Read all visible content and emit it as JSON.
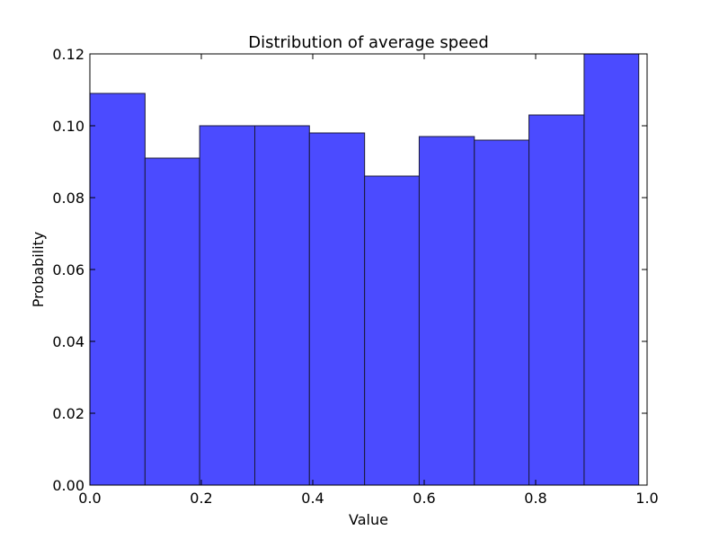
{
  "colors": {
    "bar_fill": "#4b4bff",
    "bar_edge": "#1a1a3a",
    "axes": "#000000",
    "background": "#ffffff"
  },
  "chart_data": {
    "type": "bar",
    "title": "Distribution of average speed",
    "xlabel": "Value",
    "ylabel": "Probability",
    "xlim": [
      0.0,
      1.0
    ],
    "ylim": [
      0.0,
      0.12
    ],
    "grid": false,
    "bins": [
      {
        "x0": 0.0,
        "x1": 0.099,
        "value": 0.109
      },
      {
        "x0": 0.099,
        "x1": 0.197,
        "value": 0.091
      },
      {
        "x0": 0.197,
        "x1": 0.296,
        "value": 0.1
      },
      {
        "x0": 0.296,
        "x1": 0.394,
        "value": 0.1
      },
      {
        "x0": 0.394,
        "x1": 0.493,
        "value": 0.098
      },
      {
        "x0": 0.493,
        "x1": 0.591,
        "value": 0.086
      },
      {
        "x0": 0.591,
        "x1": 0.69,
        "value": 0.097
      },
      {
        "x0": 0.69,
        "x1": 0.788,
        "value": 0.096
      },
      {
        "x0": 0.788,
        "x1": 0.887,
        "value": 0.103
      },
      {
        "x0": 0.887,
        "x1": 0.985,
        "value": 0.12
      }
    ],
    "xticks": [
      0.0,
      0.2,
      0.4,
      0.6,
      0.8,
      1.0
    ],
    "xtick_labels": [
      "0.0",
      "0.2",
      "0.4",
      "0.6",
      "0.8",
      "1.0"
    ],
    "yticks": [
      0.0,
      0.02,
      0.04,
      0.06,
      0.08,
      0.1,
      0.12
    ],
    "ytick_labels": [
      "0.00",
      "0.02",
      "0.04",
      "0.06",
      "0.08",
      "0.10",
      "0.12"
    ]
  }
}
